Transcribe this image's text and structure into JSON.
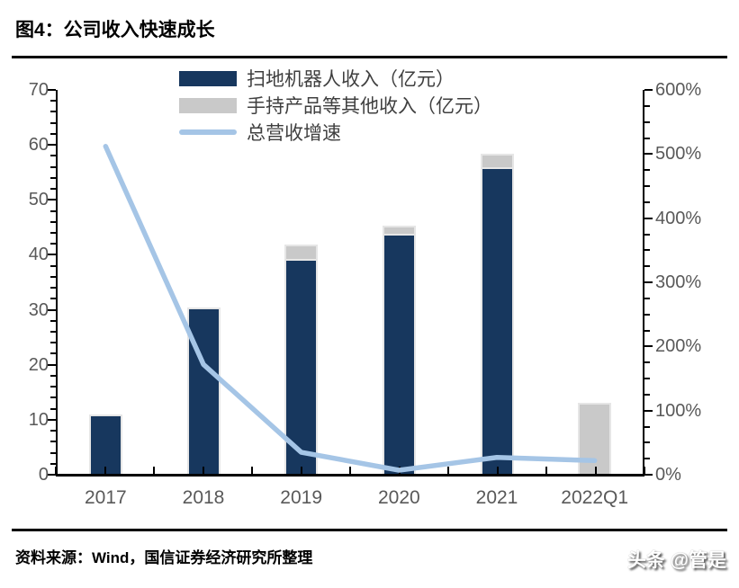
{
  "figure": {
    "title": "图4：公司收入快速成长"
  },
  "footer": {
    "source": "资料来源：Wind，国信证券经济研究所整理",
    "watermark": "头条 @管是"
  },
  "chart_data": {
    "type": "bar",
    "subtype": "stacked-bars-with-line-overlay",
    "title": "图4：公司收入快速成长",
    "categories": [
      "2017",
      "2018",
      "2019",
      "2020",
      "2021",
      "2022Q1"
    ],
    "series": [
      {
        "name": "扫地机器人收入（亿元）",
        "type": "bar",
        "axis": "left",
        "color": "#17375E",
        "values": [
          11.0,
          30.4,
          39.3,
          43.8,
          55.9,
          0
        ]
      },
      {
        "name": "手持产品等其他收入（亿元）",
        "type": "bar",
        "axis": "left",
        "color": "#C9C9C9",
        "values": [
          0,
          0,
          2.6,
          1.5,
          2.5,
          13.1
        ]
      },
      {
        "name": "总营收增速",
        "type": "line",
        "axis": "right",
        "color": "#A5C5E6",
        "unit": "%",
        "values": [
          512,
          172,
          35,
          7,
          27,
          22
        ]
      }
    ],
    "left_axis": {
      "min": 0,
      "max": 70,
      "major_step": 10,
      "minor_step": 2,
      "tick_labels": [
        "0",
        "10",
        "20",
        "30",
        "40",
        "50",
        "60",
        "70"
      ]
    },
    "right_axis": {
      "min": 0,
      "max": 600,
      "major_step": 100,
      "minor_step": 25,
      "format": "percent",
      "tick_labels": [
        "0%",
        "100%",
        "200%",
        "300%",
        "400%",
        "500%",
        "600%"
      ]
    },
    "legend_position": "top-center",
    "grid": false
  }
}
